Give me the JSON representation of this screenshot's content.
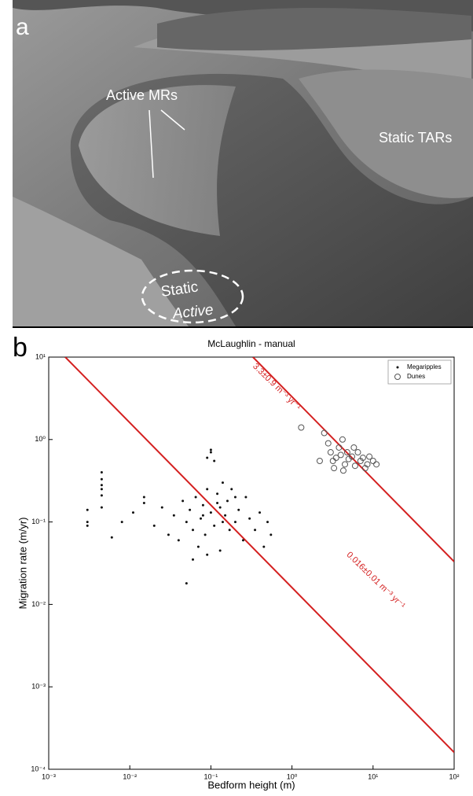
{
  "panel_a": {
    "letter": "a",
    "labels": [
      "Active MRs",
      "Static TARs",
      "Static",
      "Active"
    ]
  },
  "panel_b_letter": "b",
  "chart_data": {
    "type": "scatter",
    "title": "McLaughlin - manual",
    "x_label": "Bedform height (m)",
    "y_label": "Migration rate (m/yr)",
    "log_x": true,
    "log_y": true,
    "xlim": [
      0.001,
      100
    ],
    "ylim": [
      0.0001,
      10
    ],
    "xticks": [
      {
        "value": 0.001,
        "label": "10⁻³"
      },
      {
        "value": 0.01,
        "label": "10⁻²"
      },
      {
        "value": 0.1,
        "label": "10⁻¹"
      },
      {
        "value": 1,
        "label": "10⁰"
      },
      {
        "value": 10,
        "label": "10¹"
      },
      {
        "value": 100,
        "label": "10²"
      }
    ],
    "yticks": [
      {
        "value": 0.0001,
        "label": "10⁻⁴"
      },
      {
        "value": 0.001,
        "label": "10⁻³"
      },
      {
        "value": 0.01,
        "label": "10⁻²"
      },
      {
        "value": 0.1,
        "label": "10⁻¹"
      },
      {
        "value": 1,
        "label": "10⁰"
      },
      {
        "value": 10,
        "label": "10¹"
      }
    ],
    "legend": "top-right",
    "series": [
      {
        "name": "Megaripples",
        "color": "#111111",
        "marker": "dot",
        "x": [
          0.0045,
          0.0045,
          0.0045,
          0.0045,
          0.0045,
          0.0045,
          0.003,
          0.003,
          0.003,
          0.006,
          0.008,
          0.011,
          0.015,
          0.015,
          0.02,
          0.025,
          0.03,
          0.035,
          0.04,
          0.045,
          0.05,
          0.055,
          0.06,
          0.065,
          0.07,
          0.075,
          0.08,
          0.085,
          0.09,
          0.09,
          0.1,
          0.1,
          0.11,
          0.1,
          0.11,
          0.12,
          0.13,
          0.14,
          0.15,
          0.16,
          0.17,
          0.18,
          0.2,
          0.22,
          0.25,
          0.27,
          0.3,
          0.35,
          0.4,
          0.45,
          0.5,
          0.55,
          0.05,
          0.13,
          0.09,
          0.06,
          0.2,
          0.12,
          0.14,
          0.08
        ],
        "values": [
          0.4,
          0.33,
          0.28,
          0.25,
          0.21,
          0.15,
          0.14,
          0.1,
          0.09,
          0.065,
          0.1,
          0.13,
          0.2,
          0.17,
          0.09,
          0.15,
          0.07,
          0.12,
          0.06,
          0.18,
          0.1,
          0.14,
          0.08,
          0.2,
          0.05,
          0.11,
          0.16,
          0.07,
          0.25,
          0.6,
          0.7,
          0.75,
          0.55,
          0.13,
          0.09,
          0.22,
          0.15,
          0.3,
          0.12,
          0.18,
          0.08,
          0.25,
          0.1,
          0.14,
          0.06,
          0.2,
          0.11,
          0.08,
          0.13,
          0.05,
          0.1,
          0.07,
          0.018,
          0.045,
          0.04,
          0.035,
          0.2,
          0.17,
          0.1,
          0.12
        ]
      },
      {
        "name": "Dunes",
        "color": "#555555",
        "marker": "circle",
        "x": [
          1.3,
          2.5,
          2.8,
          3,
          3.2,
          3.5,
          3.8,
          4,
          4.2,
          4.5,
          4.8,
          5,
          5.5,
          6,
          6.5,
          7,
          7.5,
          8,
          8.5,
          9,
          10,
          11,
          2.2,
          3.3,
          5.8,
          4.3
        ],
        "values": [
          1.4,
          1.2,
          0.9,
          0.7,
          0.55,
          0.6,
          0.8,
          0.65,
          1.0,
          0.5,
          0.7,
          0.58,
          0.62,
          0.48,
          0.7,
          0.55,
          0.6,
          0.45,
          0.5,
          0.62,
          0.55,
          0.5,
          0.55,
          0.45,
          0.8,
          0.42
        ]
      }
    ],
    "fit_lines": [
      {
        "label": "3.3±0.9 m⁻³ yr⁻¹",
        "color": "#d42020",
        "x": [
          0.33,
          100
        ],
        "values": [
          10,
          0.033
        ]
      },
      {
        "label": "0.016±0.01 m⁻³ yr⁻¹",
        "color": "#d42020",
        "x": [
          0.0016,
          100
        ],
        "values": [
          10,
          0.00016
        ]
      }
    ]
  }
}
